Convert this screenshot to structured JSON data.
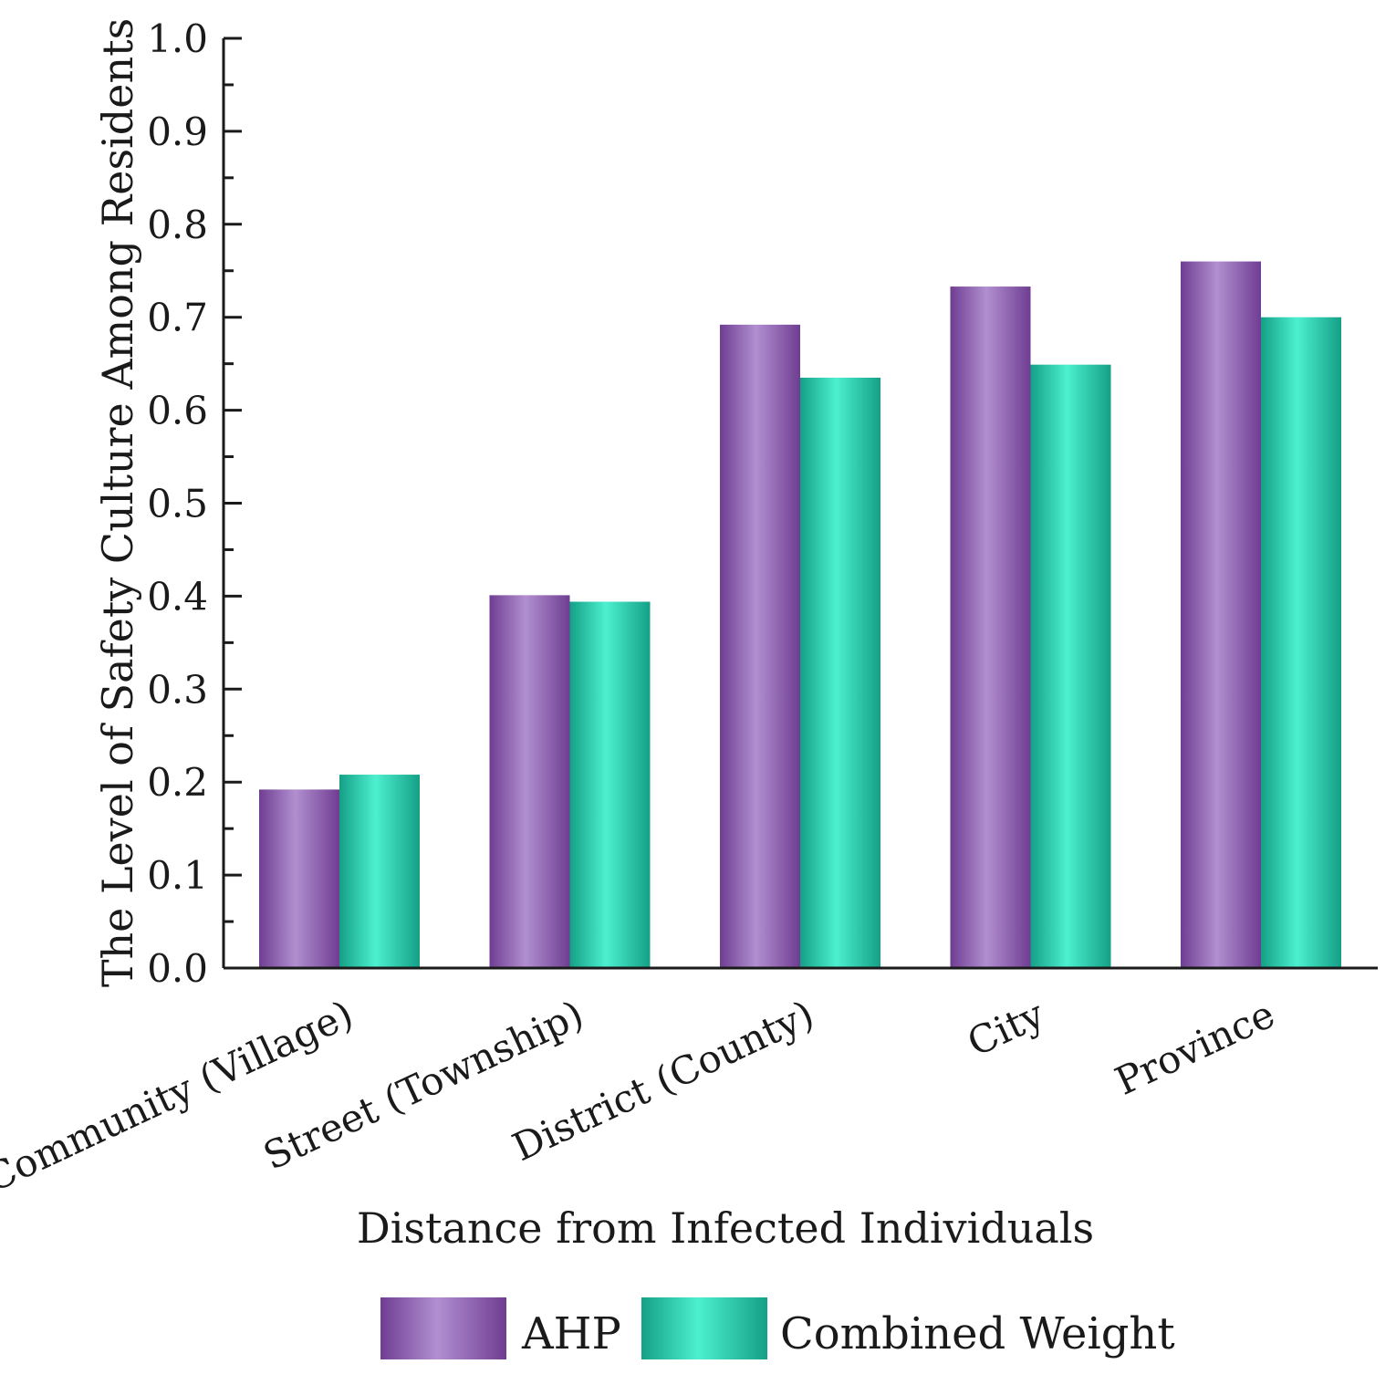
{
  "chart_data": {
    "type": "bar",
    "title": "",
    "xlabel": "Distance from Infected Individuals",
    "ylabel": "The Level of Safety Culture Among Residents",
    "categories": [
      "Community (Village)",
      "Street (Township)",
      "District (County)",
      "City",
      "Province"
    ],
    "series": [
      {
        "name": "AHP",
        "values": [
          0.192,
          0.401,
          0.692,
          0.733,
          0.76
        ]
      },
      {
        "name": "Combined Weight",
        "values": [
          0.208,
          0.394,
          0.635,
          0.649,
          0.7
        ]
      }
    ],
    "ylim": [
      0,
      1.0
    ],
    "yticks": [
      "0.0",
      "0.1",
      "0.2",
      "0.3",
      "0.4",
      "0.5",
      "0.6",
      "0.7",
      "0.8",
      "0.9",
      "1.0"
    ],
    "grid": false,
    "legend_position": "bottom-center",
    "colors": {
      "AHP": {
        "edge": "#6f3d92",
        "mid": "#b18fd0"
      },
      "Combined Weight": {
        "edge": "#14a086",
        "mid": "#4cf0d0"
      }
    }
  }
}
